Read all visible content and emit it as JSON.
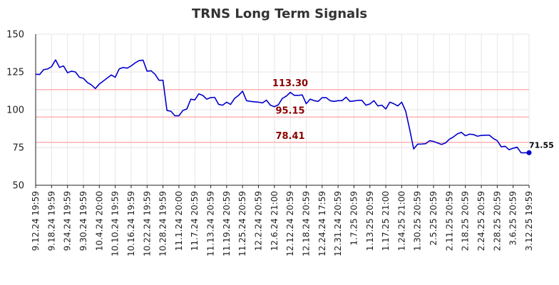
{
  "chart_data": {
    "type": "line",
    "title": "TRNS Long Term Signals",
    "xlabel": "",
    "ylabel": "",
    "ylim": [
      50,
      150
    ],
    "yticks": [
      50,
      75,
      100,
      125,
      150
    ],
    "grid": true,
    "x_tick_labels": [
      "9.12.24 19:59",
      "9.18.24 19:59",
      "9.24.24 19:59",
      "9.30.24 19:59",
      "10.4.24 20:00",
      "10.10.24 19:59",
      "10.16.24 19:59",
      "10.22.24 19:59",
      "10.28.24 19:59",
      "11.1.24 20:00",
      "11.7.24 20:59",
      "11.13.24 20:59",
      "11.19.24 20:59",
      "11.25.24 20:59",
      "12.2.24 20:59",
      "12.6.24 21:00",
      "12.12.24 20:59",
      "12.18.24 20:59",
      "12.24.24 17:59",
      "12.31.24 20:59",
      "1.7.25 20:59",
      "1.13.25 20:59",
      "1.17.25 21:00",
      "1.24.25 21:00",
      "1.30.25 20:59",
      "2.5.25 20:59",
      "2.11.25 20:59",
      "2.18.25 20:59",
      "2.24.25 20:59",
      "2.28.25 20:59",
      "3.6.25 20:59",
      "3.12.25 19:59"
    ],
    "levels": [
      {
        "value": 113.3,
        "label": "113.30",
        "color": "#ffb3b3"
      },
      {
        "value": 95.15,
        "label": "95.15",
        "color": "#ffb3b3"
      },
      {
        "value": 78.41,
        "label": "78.41",
        "color": "#ffb3b3"
      }
    ],
    "series": [
      {
        "color": "#0000cc",
        "values": [
          123.5,
          123.3,
          126.5,
          127,
          128.5,
          133,
          128,
          129,
          124.5,
          125.5,
          125,
          121.5,
          120.8,
          118,
          116.5,
          114,
          117,
          119,
          121,
          123,
          121.5,
          127,
          128,
          127.5,
          129,
          131,
          132.5,
          132.8,
          125.5,
          125.8,
          123.5,
          119.5,
          119.5,
          99.5,
          99,
          96,
          96,
          99.5,
          100.5,
          107,
          106.5,
          110.5,
          109.5,
          107,
          108,
          108.2,
          103.5,
          103,
          105,
          103.5,
          107.5,
          109.5,
          112.3,
          106,
          105.5,
          105.2,
          105,
          104.5,
          106.3,
          103,
          102,
          103.3,
          107.5,
          109,
          111.5,
          109.5,
          109.5,
          109.8,
          104,
          107,
          106,
          105.5,
          108,
          108,
          106,
          105.5,
          106,
          106,
          108.3,
          105.5,
          105.8,
          106.2,
          106.2,
          103,
          103.8,
          106,
          102.5,
          103,
          100.5,
          105,
          104,
          102.5,
          105,
          99,
          87,
          74,
          77.2,
          77.3,
          77.5,
          79.5,
          79,
          78,
          77,
          78,
          80.5,
          82,
          84,
          85,
          82.8,
          83.8,
          83.6,
          82.5,
          83,
          83.1,
          83.2,
          81,
          79.5,
          75.5,
          75.8,
          73.5,
          74.5,
          75.2,
          71.5,
          71.5,
          71.55
        ]
      }
    ],
    "last_value": 71.55,
    "last_value_label": "71.55"
  }
}
